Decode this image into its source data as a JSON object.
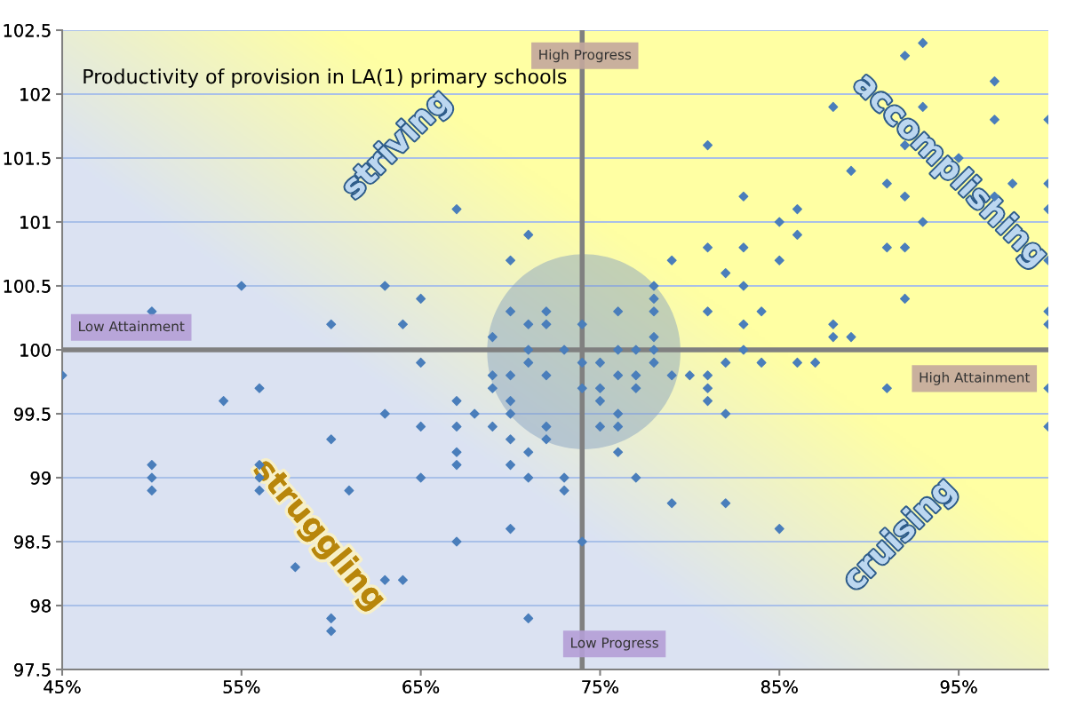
{
  "chart_data": {
    "type": "scatter",
    "title": "Productivity of provision in LA(1) primary schools",
    "xlim": [
      45,
      100
    ],
    "ylim": [
      97.5,
      102.5
    ],
    "xticks": [
      {
        "value": 45,
        "label": "45%"
      },
      {
        "value": 55,
        "label": "55%"
      },
      {
        "value": 65,
        "label": "65%"
      },
      {
        "value": 75,
        "label": "75%"
      },
      {
        "value": 85,
        "label": "85%"
      },
      {
        "value": 95,
        "label": "95%"
      }
    ],
    "yticks": [
      97.5,
      98,
      98.5,
      99,
      99.5,
      100,
      100.5,
      101,
      101.5,
      102,
      102.5
    ],
    "grid": "y",
    "marker": "diamond",
    "legend": false,
    "ref_lines": [
      {
        "axis": "x",
        "value": 74,
        "color": "#808080"
      },
      {
        "axis": "y",
        "value": 100,
        "color": "#808080"
      }
    ],
    "annotations": [
      "striving",
      "accomplishing",
      "struggling",
      "cruising",
      "High Progress",
      "Low Progress",
      "Low Attainment",
      "High Attainment"
    ],
    "series": [
      {
        "color": "#4a7ebb",
        "x": [
          45,
          50,
          55,
          63,
          65,
          64,
          60,
          67,
          71,
          70,
          70,
          72,
          71,
          72,
          69,
          74,
          76,
          78,
          78,
          78,
          78,
          79,
          81,
          81,
          81,
          82,
          71,
          73,
          76,
          77,
          78,
          93,
          92,
          97,
          88,
          93,
          97,
          100,
          92,
          95,
          89,
          91,
          98,
          100,
          92,
          97,
          100,
          83,
          86,
          85,
          93,
          86,
          83,
          91,
          92,
          85,
          100,
          83,
          92,
          84,
          100,
          83,
          88,
          100,
          88,
          89,
          83,
          65,
          71,
          74,
          75,
          78,
          82,
          84,
          86,
          87,
          69,
          70,
          72,
          76,
          77,
          79,
          80,
          81,
          69,
          74,
          75,
          77,
          81,
          91,
          100,
          67,
          70,
          75,
          81,
          68,
          70,
          76,
          82,
          65,
          67,
          69,
          72,
          75,
          76,
          100,
          70,
          72,
          60,
          67,
          71,
          76,
          67,
          70,
          65,
          71,
          73,
          77,
          73,
          79,
          82,
          70,
          67,
          74,
          64,
          71,
          54,
          56,
          63,
          50,
          50,
          50,
          56,
          56,
          56,
          61,
          58,
          63,
          60,
          60,
          85
        ],
        "values": [
          99.8,
          100.3,
          100.5,
          100.5,
          100.4,
          100.2,
          100.2,
          101.1,
          100.9,
          100.7,
          100.3,
          100.3,
          100.2,
          100.2,
          100.1,
          100.2,
          100.3,
          100.5,
          100.4,
          100.3,
          100.1,
          100.7,
          101.6,
          100.8,
          100.3,
          100.6,
          100.0,
          100.0,
          100.0,
          100.0,
          100.0,
          102.4,
          102.3,
          102.1,
          101.9,
          101.9,
          101.8,
          101.8,
          101.6,
          101.5,
          101.4,
          101.3,
          101.3,
          101.3,
          101.2,
          101.2,
          101.1,
          101.2,
          101.1,
          101.0,
          101.0,
          100.9,
          100.8,
          100.8,
          100.8,
          100.7,
          100.7,
          100.5,
          100.4,
          100.3,
          100.3,
          100.2,
          100.2,
          100.2,
          100.1,
          100.1,
          100.0,
          99.9,
          99.9,
          99.9,
          99.9,
          99.9,
          99.9,
          99.9,
          99.9,
          99.9,
          99.8,
          99.8,
          99.8,
          99.8,
          99.8,
          99.8,
          99.8,
          99.8,
          99.7,
          99.7,
          99.7,
          99.7,
          99.7,
          99.7,
          99.7,
          99.6,
          99.6,
          99.6,
          99.6,
          99.5,
          99.5,
          99.5,
          99.5,
          99.4,
          99.4,
          99.4,
          99.4,
          99.4,
          99.4,
          99.4,
          99.3,
          99.3,
          99.3,
          99.2,
          99.2,
          99.2,
          99.1,
          99.1,
          99.0,
          99.0,
          99.0,
          99.0,
          98.9,
          98.8,
          98.8,
          98.6,
          98.5,
          98.5,
          98.2,
          97.9,
          99.6,
          99.7,
          99.5,
          99.1,
          99.0,
          98.9,
          99.1,
          99.0,
          98.9,
          98.9,
          98.3,
          98.2,
          97.9,
          97.8,
          98.6
        ]
      }
    ]
  }
}
